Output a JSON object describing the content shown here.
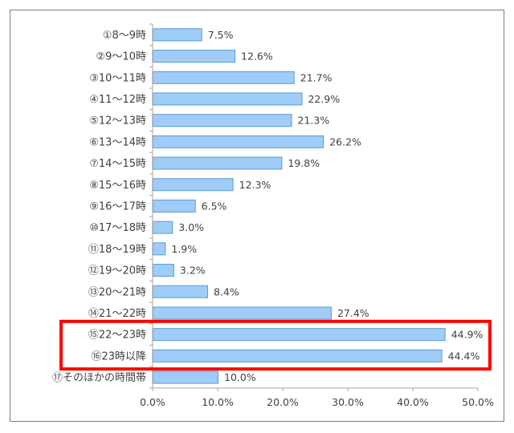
{
  "chart_data": {
    "type": "bar",
    "orientation": "horizontal",
    "categories": [
      "①8～9時",
      "②9～10時",
      "③10～11時",
      "④11～12時",
      "⑤12～13時",
      "⑥13～14時",
      "⑦14～15時",
      "⑧15～16時",
      "⑨16～17時",
      "⑩17～18時",
      "⑪18～19時",
      "⑫19～20時",
      "⑬20～21時",
      "⑭21～22時",
      "⑮22～23時",
      "⑯23時以降",
      "⑰そのほかの時間帯"
    ],
    "values": [
      7.5,
      12.6,
      21.7,
      22.9,
      21.3,
      26.2,
      19.8,
      12.3,
      6.5,
      3.0,
      1.9,
      3.2,
      8.4,
      27.4,
      44.9,
      44.4,
      10.0
    ],
    "value_labels": [
      "7.5%",
      "12.6%",
      "21.7%",
      "22.9%",
      "21.3%",
      "26.2%",
      "19.8%",
      "12.3%",
      "6.5%",
      "3.0%",
      "1.9%",
      "3.2%",
      "8.4%",
      "27.4%",
      "44.9%",
      "44.4%",
      "10.0%"
    ],
    "xlim": [
      0,
      50
    ],
    "x_ticks": [
      "0.0%",
      "10.0%",
      "20.0%",
      "30.0%",
      "40.0%",
      "50.0%"
    ],
    "x_tick_values": [
      0,
      10,
      20,
      30,
      40,
      50
    ],
    "highlighted_categories": [
      "⑮22～23時",
      "⑯23時以降"
    ],
    "bar_color": "#9fcdf7",
    "bar_border_color": "#5b9bd5",
    "highlight_color": "#ff0000",
    "grid": false,
    "legend": "none"
  }
}
